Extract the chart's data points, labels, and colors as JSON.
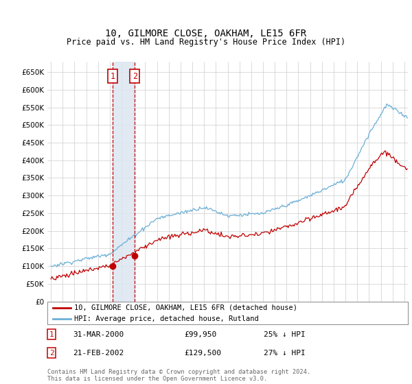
{
  "title": "10, GILMORE CLOSE, OAKHAM, LE15 6FR",
  "subtitle": "Price paid vs. HM Land Registry's House Price Index (HPI)",
  "ylim": [
    0,
    680000
  ],
  "yticks": [
    0,
    50000,
    100000,
    150000,
    200000,
    250000,
    300000,
    350000,
    400000,
    450000,
    500000,
    550000,
    600000,
    650000
  ],
  "xlim_start": 1994.7,
  "xlim_end": 2025.3,
  "hpi_color": "#6baed6",
  "price_color": "#c00000",
  "vline_color": "#c00000",
  "shade_color": "#dce6f1",
  "legend_box_color": "#c00000",
  "footnote": "Contains HM Land Registry data © Crown copyright and database right 2024.\nThis data is licensed under the Open Government Licence v3.0.",
  "legend1_label": "10, GILMORE CLOSE, OAKHAM, LE15 6FR (detached house)",
  "legend2_label": "HPI: Average price, detached house, Rutland",
  "sale1_date": "31-MAR-2000",
  "sale1_price": "£99,950",
  "sale1_hpi": "25% ↓ HPI",
  "sale1_year": 2000.24,
  "sale1_value": 99950,
  "sale2_date": "21-FEB-2002",
  "sale2_price": "£129,500",
  "sale2_hpi": "27% ↓ HPI",
  "sale2_year": 2002.12,
  "sale2_value": 129500,
  "background_color": "#ffffff",
  "grid_color": "#cccccc"
}
